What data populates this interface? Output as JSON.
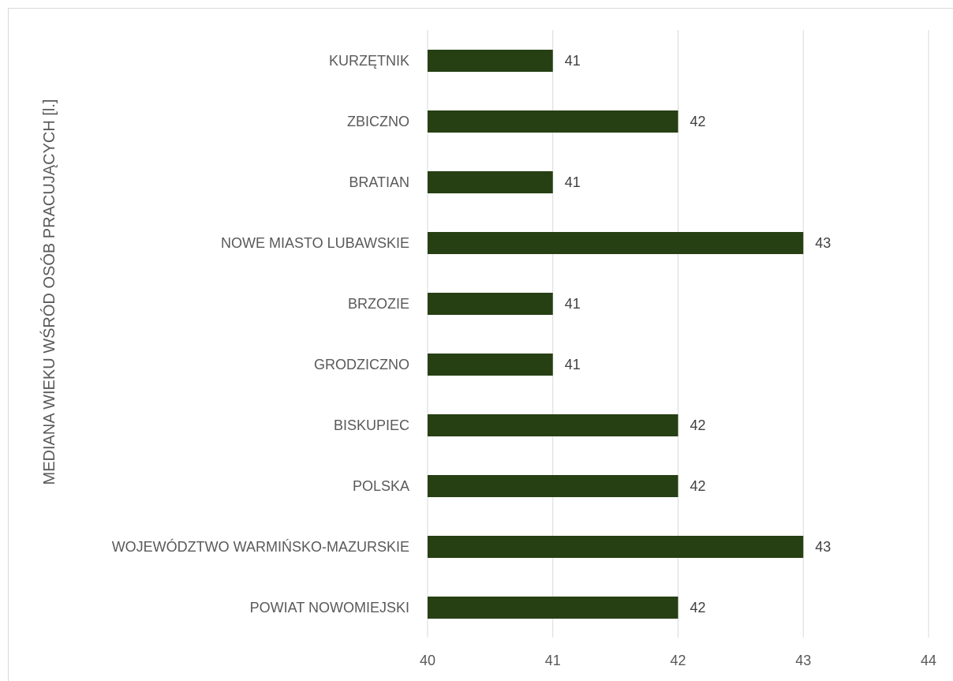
{
  "chart_data": {
    "type": "bar",
    "orientation": "horizontal",
    "categories": [
      "KURZĘTNIK",
      "ZBICZNO",
      "BRATIAN",
      "NOWE MIASTO LUBAWSKIE",
      "BRZOZIE",
      "GRODZICZNO",
      "BISKUPIEC",
      "POLSKA",
      "WOJEWÓDZTWO WARMIŃSKO-MAZURSKIE",
      "POWIAT NOWOMIEJSKI"
    ],
    "values": [
      41,
      42,
      41,
      43,
      41,
      41,
      42,
      42,
      43,
      42
    ],
    "data_labels": [
      "41",
      "42",
      "41",
      "43",
      "41",
      "41",
      "42",
      "42",
      "43",
      "42"
    ],
    "xlim": [
      40,
      44
    ],
    "xticks": [
      "40",
      "41",
      "42",
      "43",
      "44"
    ],
    "ylabel": "MEDIANA WIEKU WŚRÓD OSÓB PRACUJĄCYCH [l.]",
    "xlabel": "",
    "title": "",
    "grid": "vertical",
    "legend": "none",
    "bar_color": "#263f13",
    "grid_color": "#d9d9d9"
  }
}
